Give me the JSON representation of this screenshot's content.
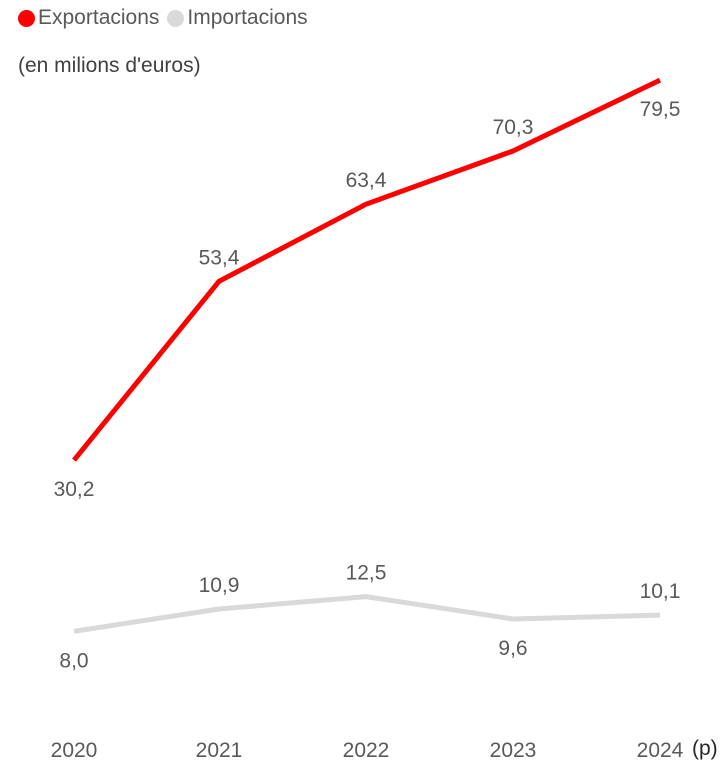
{
  "chart_data": {
    "type": "line",
    "subtitle": "(en milions d'euros)",
    "categories": [
      "2020",
      "2021",
      "2022",
      "2023",
      "2024"
    ],
    "x_suffix": "(p)",
    "series": [
      {
        "name": "Exportacions",
        "color": "#ff0000",
        "values": [
          30.2,
          53.4,
          63.4,
          70.3,
          79.5
        ],
        "labels": [
          "30,2",
          "53,4",
          "63,4",
          "70,3",
          "79,5"
        ],
        "label_positions": [
          "below",
          "above",
          "above",
          "above",
          "below"
        ]
      },
      {
        "name": "Importacions",
        "color": "#d9d9d9",
        "values": [
          8.0,
          10.9,
          12.5,
          9.6,
          10.1
        ],
        "labels": [
          "8,0",
          "10,9",
          "12,5",
          "9,6",
          "10,1"
        ],
        "label_positions": [
          "below",
          "above",
          "above",
          "below",
          "above"
        ]
      }
    ],
    "ylim": [
      0,
      85
    ],
    "grid": false,
    "legend": "top-left"
  }
}
